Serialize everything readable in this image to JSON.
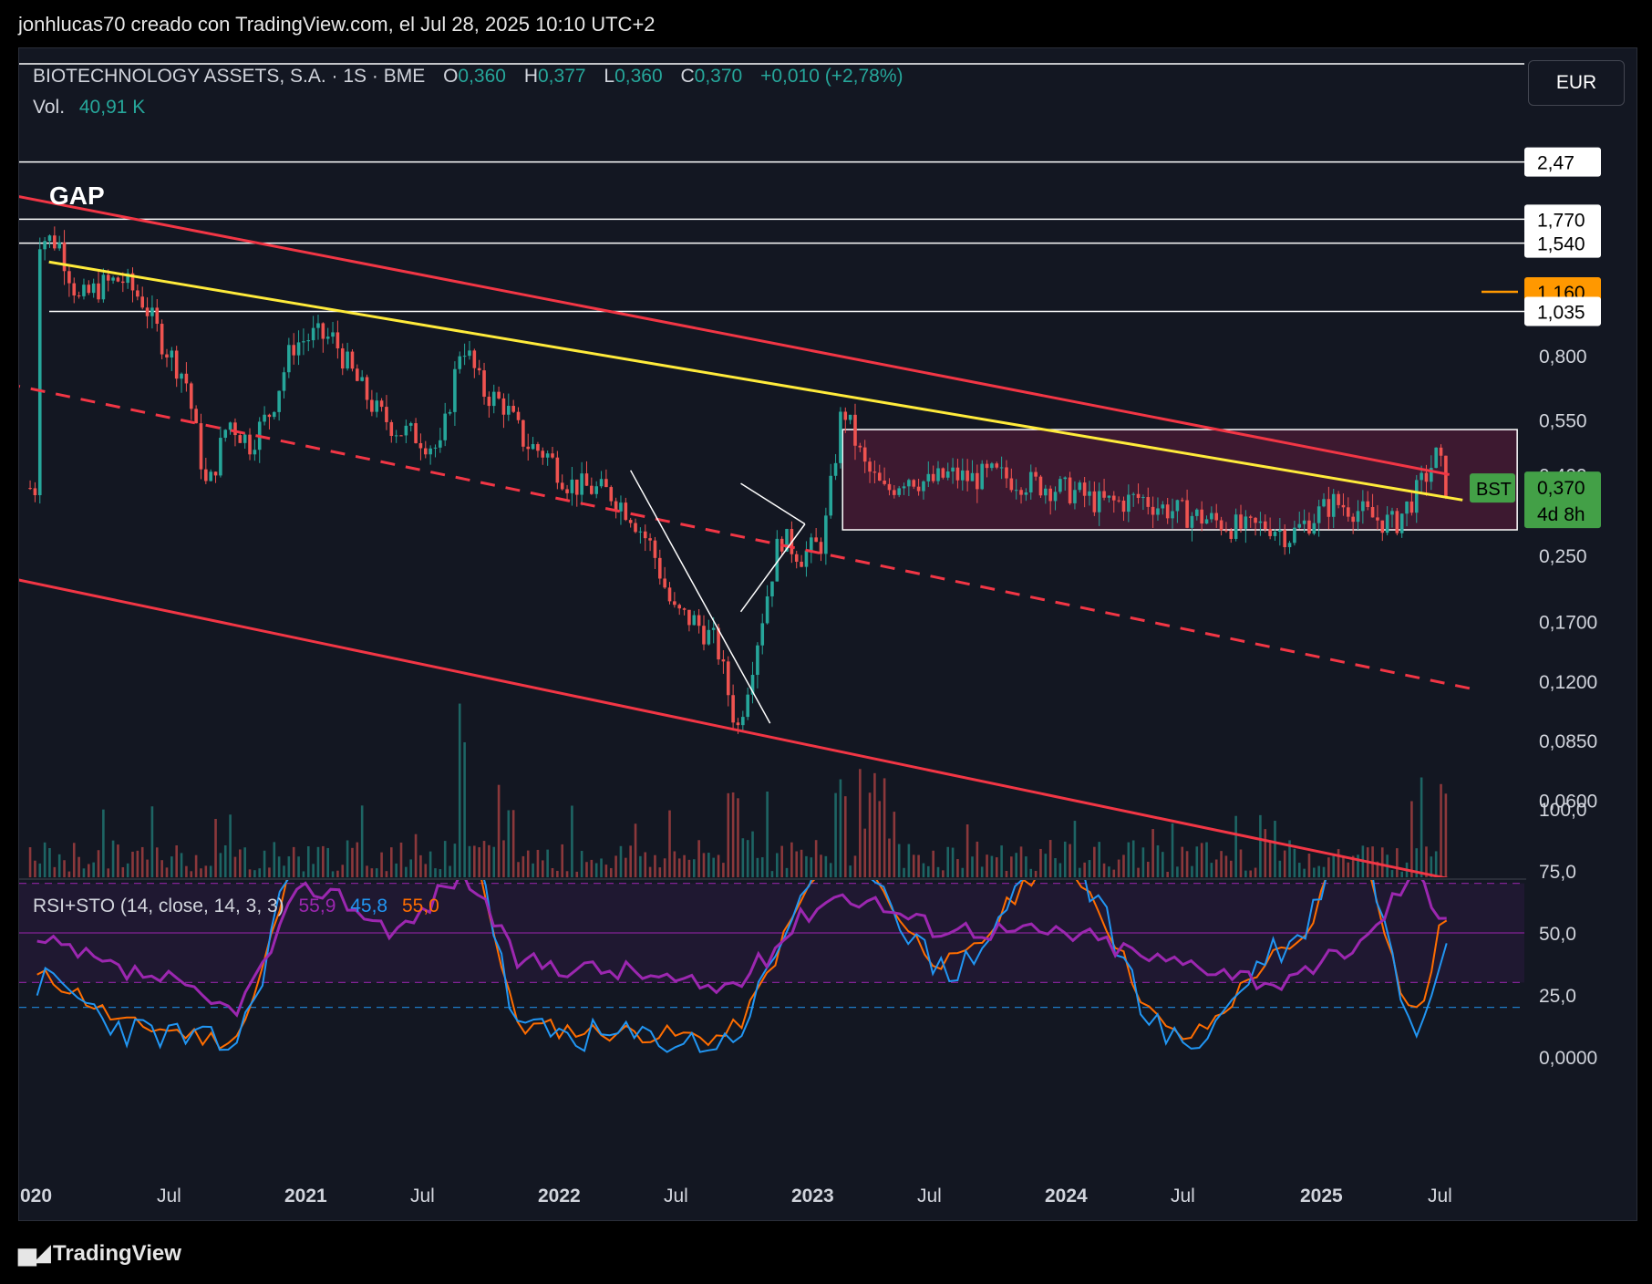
{
  "attribution": "jonhlucas70 creado con TradingView.com, el Jul 28, 2025 10:10 UTC+2",
  "symbol": {
    "name": "BIOTECHNOLOGY ASSETS, S.A. · 1S · BME",
    "open_label": "O",
    "open": "0,360",
    "high_label": "H",
    "high": "0,377",
    "low_label": "L",
    "low": "0,360",
    "close_label": "C",
    "close": "0,370",
    "change": "+0,010 (+2,78%)",
    "volume_label": "Vol.",
    "volume": "40,91 K"
  },
  "currency": "EUR",
  "price_axis": [
    "0,800",
    "0,550",
    "0,400",
    "0,250",
    "0,1700",
    "0,1200",
    "0,0850",
    "0,0600"
  ],
  "level_tags": {
    "l247": "2,47",
    "l1770": "1,770",
    "l1540": "1,540",
    "l1160": "1,160",
    "l1035": "1,035"
  },
  "last_tag": {
    "ticker": "BST",
    "price": "0,370",
    "countdown": "4d 8h"
  },
  "annotation_gap": "GAP",
  "indicator": {
    "label": "RSI+STO (14, close, 14, 3, 3)",
    "rsi": "55,9",
    "k": "45,8",
    "d": "55,0",
    "axis": [
      "100,0",
      "75,0",
      "50,0",
      "25,0",
      "0,0000"
    ]
  },
  "time_axis": [
    "020",
    "Jul",
    "2021",
    "Jul",
    "2022",
    "Jul",
    "2023",
    "Jul",
    "2024",
    "Jul",
    "2025",
    "Jul"
  ],
  "brand": "TradingView",
  "colors": {
    "up": "#26a69a",
    "down": "#ef5350",
    "channel": "#f23645",
    "trend": "#ffeb3b",
    "range_fill": "#5a1a3a",
    "rsi": "#9c27b0",
    "k": "#2196f3",
    "d": "#ff6d00",
    "tag_orange": "#ff9800"
  },
  "chart_data": {
    "type": "candlestick",
    "timeframe": "1W",
    "scale": "log",
    "ylim": [
      0.05,
      2.6
    ],
    "x_range": [
      "2020-01",
      "2025-09"
    ],
    "price_path": [
      [
        "2020-01",
        1.6
      ],
      [
        "2020-02",
        1.55
      ],
      [
        "2020-03",
        1.1
      ],
      [
        "2020-04",
        1.2
      ],
      [
        "2020-05",
        1.25
      ],
      [
        "2020-06",
        1.1
      ],
      [
        "2020-07",
        0.85
      ],
      [
        "2020-08",
        0.7
      ],
      [
        "2020-09",
        0.36
      ],
      [
        "2020-10",
        0.55
      ],
      [
        "2020-11",
        0.48
      ],
      [
        "2020-12",
        0.58
      ],
      [
        "2021-01",
        0.85
      ],
      [
        "2021-02",
        0.9
      ],
      [
        "2021-03",
        0.88
      ],
      [
        "2021-04",
        0.7
      ],
      [
        "2021-05",
        0.58
      ],
      [
        "2021-06",
        0.52
      ],
      [
        "2021-07",
        0.5
      ],
      [
        "2021-08",
        0.46
      ],
      [
        "2021-09",
        0.88
      ],
      [
        "2021-10",
        0.65
      ],
      [
        "2021-11",
        0.6
      ],
      [
        "2021-12",
        0.48
      ],
      [
        "2022-01",
        0.45
      ],
      [
        "2022-02",
        0.38
      ],
      [
        "2022-03",
        0.37
      ],
      [
        "2022-04",
        0.36
      ],
      [
        "2022-05",
        0.32
      ],
      [
        "2022-06",
        0.26
      ],
      [
        "2022-07",
        0.18
      ],
      [
        "2022-08",
        0.17
      ],
      [
        "2022-09",
        0.15
      ],
      [
        "2022-10",
        0.09
      ],
      [
        "2022-11",
        0.16
      ],
      [
        "2022-12",
        0.28
      ],
      [
        "2023-01",
        0.25
      ],
      [
        "2023-02",
        0.27
      ],
      [
        "2023-03",
        0.6
      ],
      [
        "2023-04",
        0.42
      ],
      [
        "2023-05",
        0.36
      ],
      [
        "2023-06",
        0.4
      ],
      [
        "2023-07",
        0.38
      ],
      [
        "2023-08",
        0.4
      ],
      [
        "2023-09",
        0.39
      ],
      [
        "2023-10",
        0.4
      ],
      [
        "2023-11",
        0.39
      ],
      [
        "2023-12",
        0.38
      ],
      [
        "2024-01",
        0.37
      ],
      [
        "2024-02",
        0.36
      ],
      [
        "2024-03",
        0.34
      ],
      [
        "2024-04",
        0.34
      ],
      [
        "2024-05",
        0.35
      ],
      [
        "2024-06",
        0.33
      ],
      [
        "2024-07",
        0.32
      ],
      [
        "2024-08",
        0.31
      ],
      [
        "2024-09",
        0.3
      ],
      [
        "2024-10",
        0.29
      ],
      [
        "2024-11",
        0.3
      ],
      [
        "2024-12",
        0.28
      ],
      [
        "2025-01",
        0.31
      ],
      [
        "2025-02",
        0.34
      ],
      [
        "2025-03",
        0.33
      ],
      [
        "2025-04",
        0.31
      ],
      [
        "2025-05",
        0.3
      ],
      [
        "2025-06",
        0.36
      ],
      [
        "2025-07",
        0.45
      ],
      [
        "2025-07-28",
        0.37
      ]
    ],
    "horizontal_levels": [
      2.47,
      1.77,
      1.54,
      1.035
    ],
    "marked_level": 1.16,
    "range_box": {
      "from": "2023-03",
      "to": "2025-09",
      "top": 0.52,
      "bottom": 0.29
    },
    "annotations": [
      "GAP"
    ],
    "legend": "top-left",
    "indicator_data": {
      "rsi_path": [
        [
          "2020-01",
          45
        ],
        [
          "2020-06",
          33
        ],
        [
          "2020-10",
          20
        ],
        [
          "2021-02",
          68
        ],
        [
          "2021-06",
          52
        ],
        [
          "2021-09",
          72
        ],
        [
          "2021-12",
          38
        ],
        [
          "2022-04",
          35
        ],
        [
          "2022-09",
          28
        ],
        [
          "2023-03",
          65
        ],
        [
          "2023-08",
          52
        ],
        [
          "2024-01",
          50
        ],
        [
          "2024-07",
          38
        ],
        [
          "2024-12",
          30
        ],
        [
          "2025-03",
          44
        ],
        [
          "2025-06",
          72
        ],
        [
          "2025-07-28",
          55.9
        ]
      ],
      "k_path": [
        [
          "2020-01",
          30
        ],
        [
          "2020-06",
          10
        ],
        [
          "2020-10",
          5
        ],
        [
          "2021-02",
          92
        ],
        [
          "2021-06",
          90
        ],
        [
          "2021-09",
          95
        ],
        [
          "2021-12",
          10
        ],
        [
          "2022-04",
          8
        ],
        [
          "2022-09",
          5
        ],
        [
          "2023-03",
          85
        ],
        [
          "2023-08",
          35
        ],
        [
          "2024-01",
          80
        ],
        [
          "2024-07",
          5
        ],
        [
          "2024-12",
          45
        ],
        [
          "2025-03",
          92
        ],
        [
          "2025-06",
          15
        ],
        [
          "2025-07-28",
          45.8
        ]
      ],
      "d_path": [
        [
          "2020-01",
          32
        ],
        [
          "2020-06",
          12
        ],
        [
          "2020-10",
          7
        ],
        [
          "2021-02",
          88
        ],
        [
          "2021-06",
          88
        ],
        [
          "2021-09",
          90
        ],
        [
          "2021-12",
          12
        ],
        [
          "2022-04",
          10
        ],
        [
          "2022-09",
          8
        ],
        [
          "2023-03",
          80
        ],
        [
          "2023-08",
          38
        ],
        [
          "2024-01",
          78
        ],
        [
          "2024-07",
          8
        ],
        [
          "2024-12",
          42
        ],
        [
          "2025-03",
          88
        ],
        [
          "2025-06",
          18
        ],
        [
          "2025-07-28",
          55.0
        ]
      ],
      "levels": [
        80,
        70,
        50,
        30,
        20
      ]
    }
  }
}
